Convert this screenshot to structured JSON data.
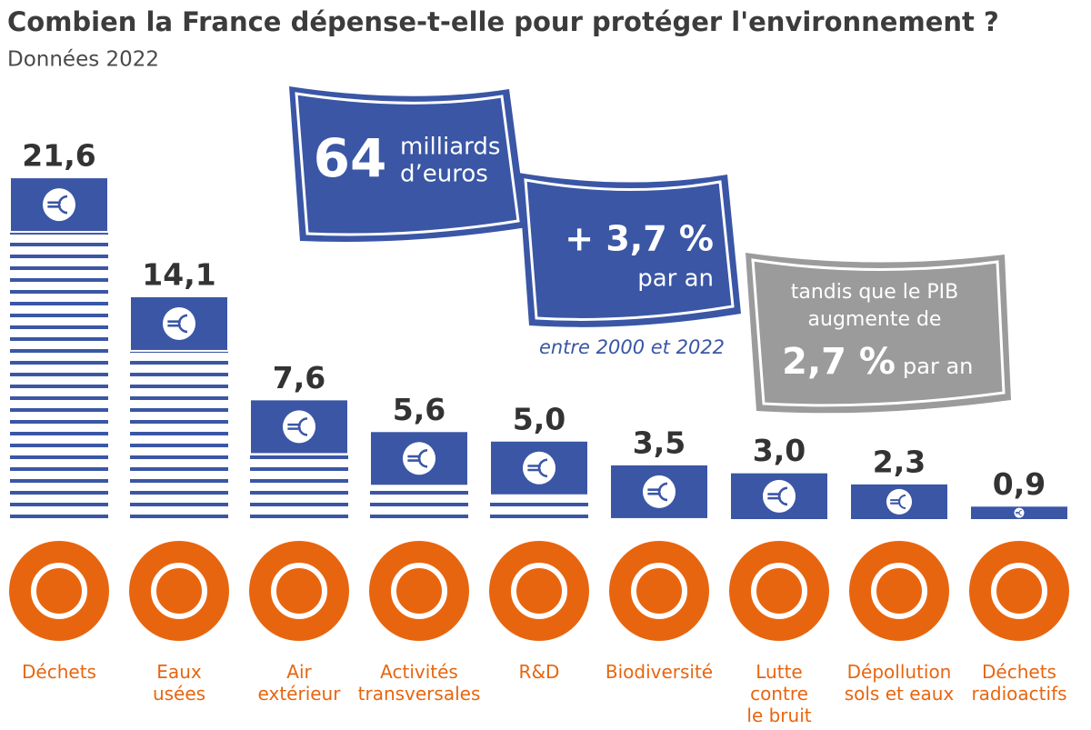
{
  "chart_data": {
    "type": "bar",
    "title": "Combien la France dépense-t-elle pour protéger l'environnement ?",
    "subtitle": "Données 2022",
    "categories": [
      "Déchets",
      "Eaux\nusées",
      "Air\nextérieur",
      "Activités\ntransversales",
      "R&D",
      "Biodiversité",
      "Lutte\ncontre\nle bruit",
      "Dépollution\nsols et eaux",
      "Déchets\nradioactifs"
    ],
    "values": [
      21.6,
      14.1,
      7.6,
      5.6,
      5.0,
      3.5,
      3.0,
      2.3,
      0.9
    ],
    "value_labels": [
      "21,6",
      "14,1",
      "7,6",
      "5,6",
      "5,0",
      "3,5",
      "3,0",
      "2,3",
      "0,9"
    ],
    "color": "#3a56a5",
    "icon_color": "#e8650f",
    "annotations": [
      "64",
      "milliards",
      "d’euros",
      "+ 3,7 %",
      "par an",
      "entre 2000 et 2022",
      "tandis que le PIB",
      "augmente de",
      "2,7 %",
      "par an"
    ]
  }
}
